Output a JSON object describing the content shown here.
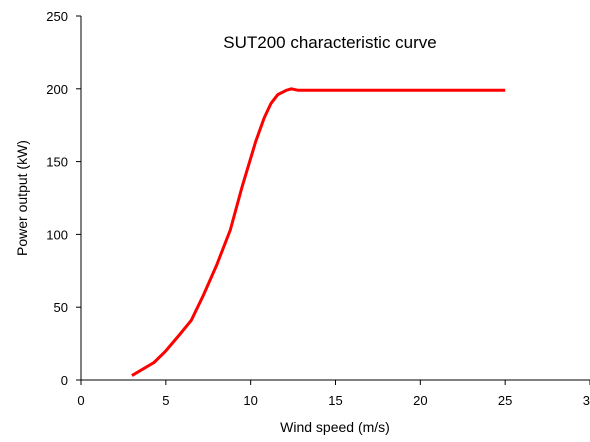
{
  "chart_data": {
    "type": "line",
    "title": "SUT200 characteristic curve",
    "xlabel": "Wind speed (m/s)",
    "ylabel": "Power output (kW)",
    "xlim": [
      0,
      30
    ],
    "ylim": [
      0,
      250
    ],
    "xticks": [
      "0",
      "5",
      "10",
      "15",
      "20",
      "25",
      "30"
    ],
    "yticks": [
      "0",
      "50",
      "100",
      "150",
      "200",
      "250"
    ],
    "grid": false,
    "legend": "none",
    "series": [
      {
        "color": "#ff0000",
        "x": [
          3,
          4.3,
          5,
          5.8,
          6.5,
          7.2,
          8,
          8.8,
          9.5,
          10.3,
          10.8,
          11.2,
          11.6,
          12.1,
          12.4,
          12.8,
          13.5,
          15,
          20,
          25
        ],
        "y": [
          3,
          12,
          20,
          31,
          41,
          58,
          79,
          103,
          133,
          164,
          180,
          190,
          196,
          199,
          200,
          199,
          199,
          199,
          199,
          199
        ]
      }
    ]
  }
}
